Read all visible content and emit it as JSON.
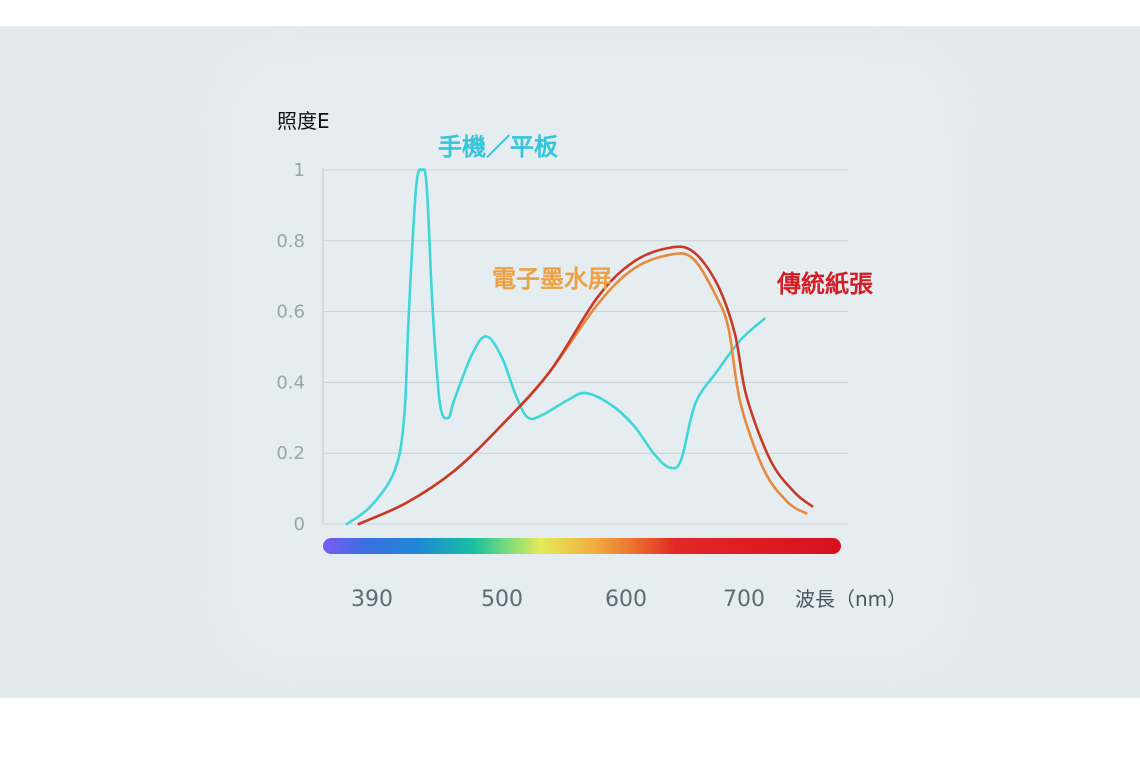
{
  "chart_data": {
    "type": "line",
    "ylabel": "照度E",
    "xlabel": "波長（nm）",
    "yticks": [
      "1",
      "0.8",
      "0.6",
      "0.4",
      "0.2",
      "0"
    ],
    "xticks": [
      "390",
      "500",
      "600",
      "700"
    ],
    "xlim": [
      360,
      800
    ],
    "ylim": [
      0,
      1
    ],
    "grid": true,
    "spectrum_bar": true,
    "series": [
      {
        "name": "手機／平板",
        "color": "#3fd6d9",
        "points": [
          [
            380,
            0
          ],
          [
            400,
            0.05
          ],
          [
            420,
            0.15
          ],
          [
            428,
            0.3
          ],
          [
            432,
            0.6
          ],
          [
            438,
            0.95
          ],
          [
            443,
            1.0
          ],
          [
            447,
            0.95
          ],
          [
            452,
            0.6
          ],
          [
            458,
            0.34
          ],
          [
            465,
            0.3
          ],
          [
            470,
            0.35
          ],
          [
            485,
            0.48
          ],
          [
            497,
            0.53
          ],
          [
            510,
            0.47
          ],
          [
            522,
            0.36
          ],
          [
            532,
            0.3
          ],
          [
            545,
            0.31
          ],
          [
            565,
            0.35
          ],
          [
            580,
            0.37
          ],
          [
            600,
            0.34
          ],
          [
            620,
            0.28
          ],
          [
            637,
            0.2
          ],
          [
            650,
            0.16
          ],
          [
            660,
            0.18
          ],
          [
            672,
            0.34
          ],
          [
            690,
            0.43
          ],
          [
            710,
            0.52
          ],
          [
            730,
            0.58
          ]
        ]
      },
      {
        "name": "電子墨水屏",
        "color": "#e58a3e",
        "points": [
          [
            390,
            0
          ],
          [
            430,
            0.06
          ],
          [
            470,
            0.15
          ],
          [
            510,
            0.28
          ],
          [
            550,
            0.43
          ],
          [
            590,
            0.62
          ],
          [
            620,
            0.72
          ],
          [
            650,
            0.76
          ],
          [
            670,
            0.75
          ],
          [
            690,
            0.64
          ],
          [
            700,
            0.55
          ],
          [
            710,
            0.34
          ],
          [
            730,
            0.15
          ],
          [
            750,
            0.06
          ],
          [
            765,
            0.03
          ]
        ]
      },
      {
        "name": "傳統紙張",
        "color": "#c63a28",
        "points": [
          [
            390,
            0
          ],
          [
            430,
            0.06
          ],
          [
            470,
            0.15
          ],
          [
            510,
            0.28
          ],
          [
            550,
            0.43
          ],
          [
            590,
            0.64
          ],
          [
            620,
            0.74
          ],
          [
            650,
            0.78
          ],
          [
            670,
            0.77
          ],
          [
            690,
            0.68
          ],
          [
            705,
            0.54
          ],
          [
            715,
            0.36
          ],
          [
            735,
            0.18
          ],
          [
            755,
            0.09
          ],
          [
            770,
            0.05
          ]
        ]
      }
    ],
    "labels": {
      "phone_color": "#35c4da",
      "eink_color": "#eaa245",
      "paper_color": "#d21f26"
    }
  }
}
